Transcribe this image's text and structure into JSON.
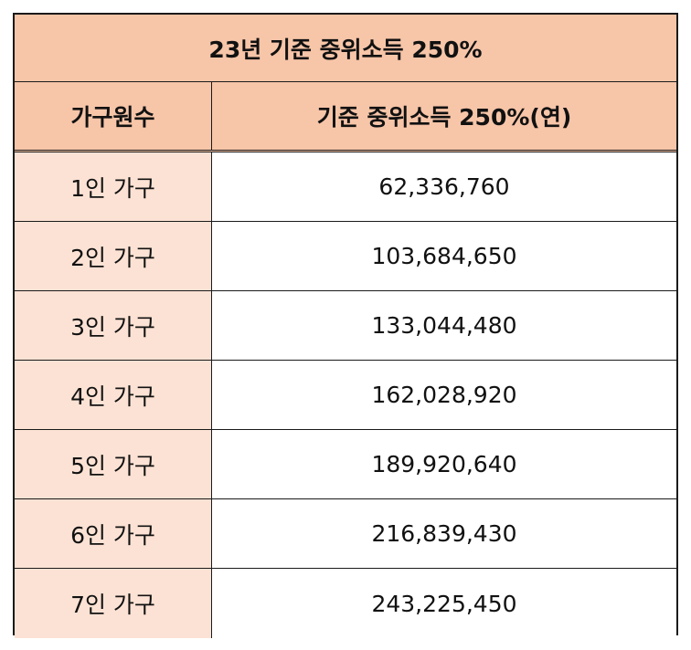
{
  "table": {
    "title": "23년 기준 중위소득 250%",
    "headers": [
      "가구원수",
      "기준 중위소득 250%(연)"
    ],
    "rows": [
      [
        "1인 가구",
        "62,336,760"
      ],
      [
        "2인 가구",
        "103,684,650"
      ],
      [
        "3인 가구",
        "133,044,480"
      ],
      [
        "4인 가구",
        "162,028,920"
      ],
      [
        "5인 가구",
        "189,920,640"
      ],
      [
        "6인 가구",
        "216,839,430"
      ],
      [
        "7인 가구",
        "243,225,450"
      ]
    ]
  },
  "colors": {
    "header_bg": "#f7c5a8",
    "first_column_bg": "#fce2d4",
    "border": "#1a1a1a"
  }
}
